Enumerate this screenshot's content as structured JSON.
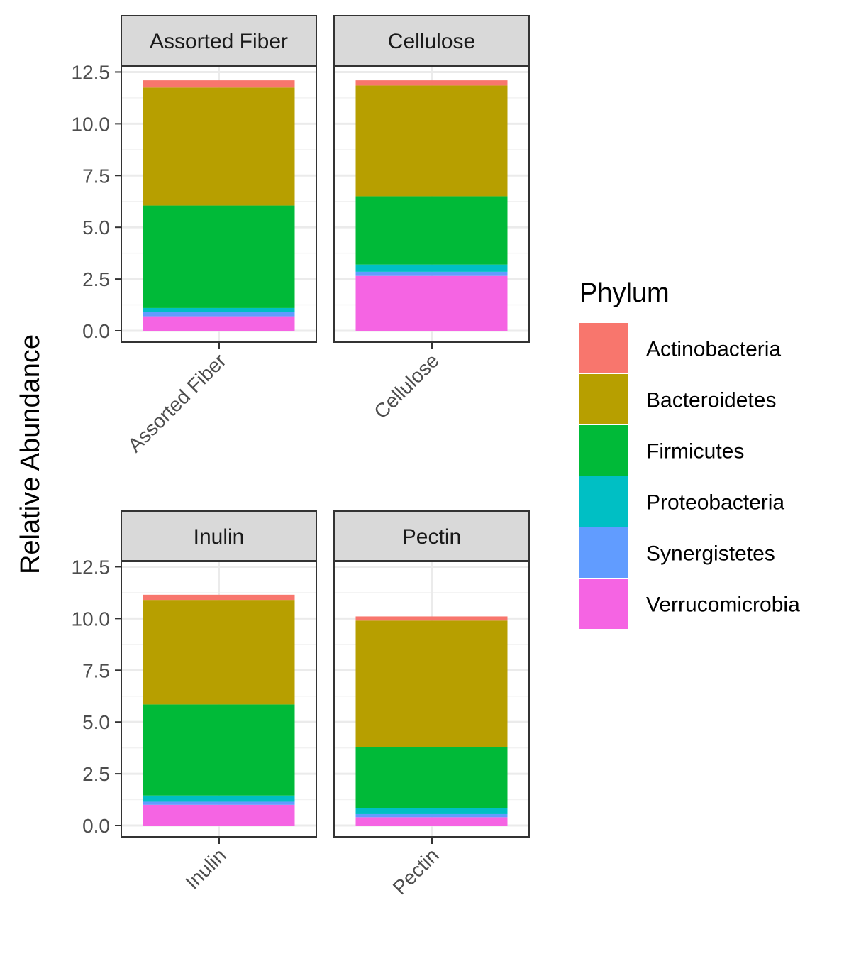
{
  "chart_data": {
    "type": "bar",
    "layout": "faceted stacked bar, 2x2 panels",
    "ylabel": "Relative Abundance",
    "ylim": [
      0,
      13.0
    ],
    "yticks": [
      "0.0",
      "2.5",
      "5.0",
      "7.5",
      "10.0",
      "12.5"
    ],
    "ytick_values": [
      0,
      2.5,
      5.0,
      7.5,
      10.0,
      12.5
    ],
    "grid": true,
    "legend": {
      "title": "Phylum",
      "placement": "right",
      "entries": [
        "Actinobacteria",
        "Bacteroidetes",
        "Firmicutes",
        "Proteobacteria",
        "Synergistetes",
        "Verrucomicrobia"
      ]
    },
    "colors": {
      "Actinobacteria": "#F8766D",
      "Bacteroidetes": "#B79F00",
      "Firmicutes": "#00BA38",
      "Proteobacteria": "#00BFC4",
      "Synergistetes": "#619CFF",
      "Verrucomicrobia": "#F564E3"
    },
    "panels": [
      {
        "facet": "Assorted Fiber",
        "category": "Assorted Fiber",
        "values": {
          "Verrucomicrobia": 0.7,
          "Synergistetes": 0.2,
          "Proteobacteria": 0.2,
          "Firmicutes": 4.95,
          "Bacteroidetes": 5.7,
          "Actinobacteria": 0.35
        }
      },
      {
        "facet": "Cellulose",
        "category": "Cellulose",
        "values": {
          "Verrucomicrobia": 2.65,
          "Synergistetes": 0.2,
          "Proteobacteria": 0.35,
          "Firmicutes": 3.3,
          "Bacteroidetes": 5.35,
          "Actinobacteria": 0.25
        }
      },
      {
        "facet": "Inulin",
        "category": "Inulin",
        "values": {
          "Verrucomicrobia": 1.0,
          "Synergistetes": 0.15,
          "Proteobacteria": 0.3,
          "Firmicutes": 4.4,
          "Bacteroidetes": 5.05,
          "Actinobacteria": 0.25
        }
      },
      {
        "facet": "Pectin",
        "category": "Pectin",
        "values": {
          "Verrucomicrobia": 0.4,
          "Synergistetes": 0.15,
          "Proteobacteria": 0.3,
          "Firmicutes": 2.95,
          "Bacteroidetes": 6.1,
          "Actinobacteria": 0.2
        }
      }
    ]
  }
}
